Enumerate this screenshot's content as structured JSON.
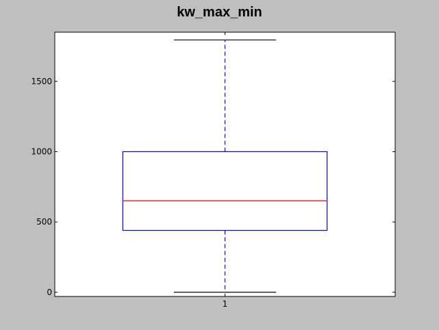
{
  "chart_data": {
    "type": "box",
    "title": "kw_max_min",
    "xlabel": "",
    "ylabel": "",
    "categories": [
      "1"
    ],
    "boxes": [
      {
        "category": "1",
        "whisker_low": 0,
        "q1": 440,
        "median": 650,
        "q3": 1000,
        "whisker_high": 1795
      }
    ],
    "ylim": [
      -30,
      1850
    ],
    "yticks": [
      0,
      500,
      1000,
      1500
    ],
    "ytick_labels": [
      "0",
      "500",
      "1000",
      "1500"
    ],
    "grid": false,
    "colors": {
      "box": "#0000ff",
      "median": "#ff0000",
      "whisker": "#0000ff",
      "cap": "#000000",
      "background": "#bfbfbf",
      "plot_area": "#ffffff"
    }
  }
}
